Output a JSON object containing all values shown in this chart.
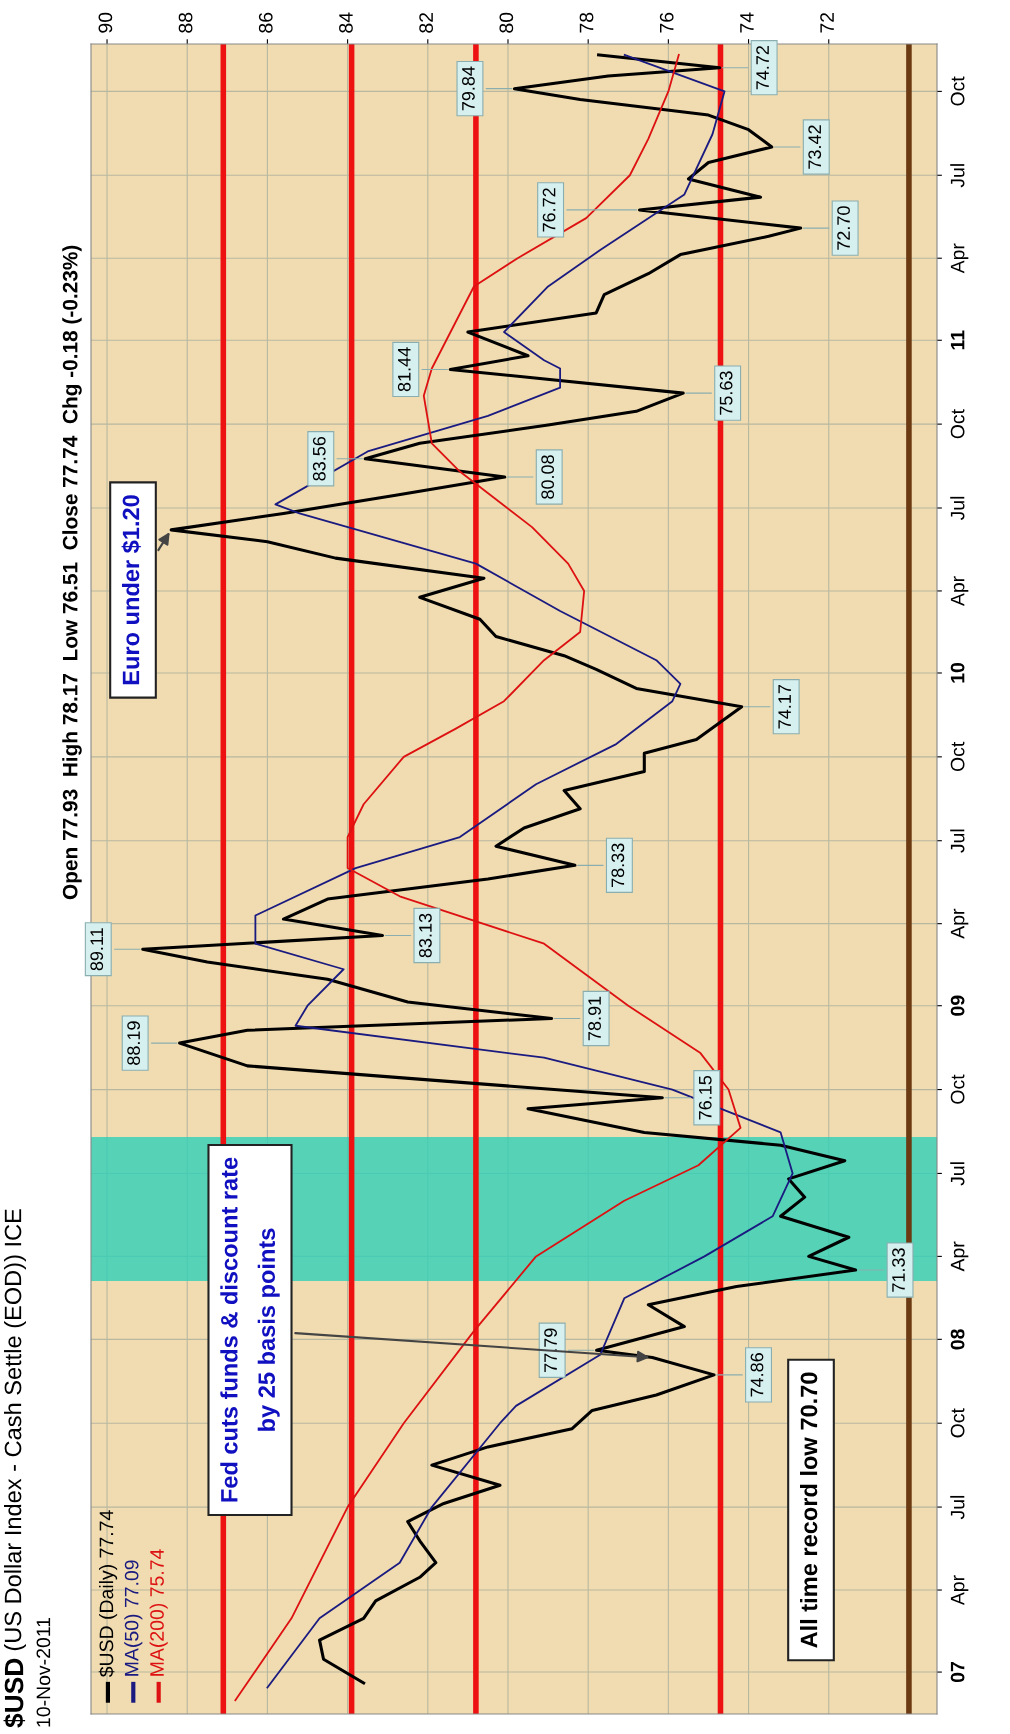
{
  "chart_data": {
    "type": "line",
    "title": "$USD (US Dollar Index - Cash Settle (EOD)) ICE",
    "subtitle": "10-Nov-2011",
    "series": [
      {
        "name": "$USD (Daily) 77.74",
        "color": "#000000",
        "x": [
          "2006-12-20",
          "2007-01-15",
          "2007-02-05",
          "2007-03-01",
          "2007-03-20",
          "2007-04-15",
          "2007-05-01",
          "2007-05-25",
          "2007-06-15",
          "2007-07-05",
          "2007-07-25",
          "2007-08-16",
          "2007-09-05",
          "2007-09-25",
          "2007-10-15",
          "2007-11-01",
          "2007-11-23",
          "2007-12-12",
          "2007-12-20",
          "2008-01-15",
          "2008-02-08",
          "2008-02-28",
          "2008-03-17",
          "2008-04-01",
          "2008-04-22",
          "2008-05-15",
          "2008-06-05",
          "2008-06-25",
          "2008-07-15",
          "2008-08-01",
          "2008-08-15",
          "2008-09-10",
          "2008-09-22",
          "2008-10-10",
          "2008-10-27",
          "2008-11-21",
          "2008-12-05",
          "2008-12-18",
          "2009-01-05",
          "2009-01-30",
          "2009-02-18",
          "2009-03-04",
          "2009-03-19",
          "2009-04-06",
          "2009-04-28",
          "2009-05-20",
          "2009-06-04",
          "2009-06-25",
          "2009-07-15",
          "2009-08-05",
          "2009-08-25",
          "2009-09-15",
          "2009-10-05",
          "2009-10-20",
          "2009-11-25",
          "2009-12-15",
          "2010-01-05",
          "2010-01-20",
          "2010-02-10",
          "2010-03-01",
          "2010-03-25",
          "2010-04-15",
          "2010-05-07",
          "2010-05-25",
          "2010-06-07",
          "2010-06-25",
          "2010-07-15",
          "2010-08-04",
          "2010-08-24",
          "2010-09-10",
          "2010-09-30",
          "2010-10-15",
          "2010-11-04",
          "2010-11-30",
          "2010-12-15",
          "2011-01-10",
          "2011-01-31",
          "2011-02-20",
          "2011-03-15",
          "2011-04-05",
          "2011-04-25",
          "2011-05-04",
          "2011-05-24",
          "2011-06-07",
          "2011-06-27",
          "2011-07-15",
          "2011-08-01",
          "2011-08-20",
          "2011-09-05",
          "2011-09-22",
          "2011-10-04",
          "2011-10-18",
          "2011-10-27",
          "2011-11-10"
        ],
        "values": [
          83.6,
          84.6,
          84.7,
          83.6,
          83.3,
          82.2,
          81.8,
          82.2,
          82.5,
          81.6,
          80.2,
          81.9,
          80.5,
          78.4,
          77.9,
          76.3,
          74.86,
          76.4,
          77.79,
          75.6,
          76.5,
          74.3,
          71.33,
          72.5,
          71.5,
          73.2,
          72.6,
          73.0,
          71.6,
          73.2,
          76.6,
          79.5,
          76.15,
          81.5,
          86.5,
          88.19,
          86.5,
          78.91,
          82.5,
          84.5,
          87.5,
          89.11,
          83.13,
          85.6,
          84.5,
          80.5,
          78.33,
          80.3,
          79.6,
          78.2,
          78.6,
          76.6,
          76.6,
          75.3,
          74.17,
          76.8,
          77.8,
          78.6,
          80.3,
          80.7,
          82.2,
          80.6,
          84.3,
          86.0,
          88.4,
          85.6,
          82.8,
          80.08,
          83.56,
          82.2,
          79.0,
          76.8,
          75.63,
          81.44,
          79.5,
          81.0,
          77.8,
          77.6,
          76.5,
          75.7,
          73.5,
          72.7,
          76.72,
          73.7,
          75.5,
          75.0,
          73.42,
          74.0,
          75.0,
          78.2,
          79.84,
          77.5,
          74.72,
          77.74
        ]
      },
      {
        "name": "MA(50) 77.09",
        "color": "#1a1a80",
        "x": [
          "2006-12-15",
          "2007-03-01",
          "2007-05-01",
          "2007-07-01",
          "2007-10-01",
          "2007-10-20",
          "2007-12-15",
          "2008-02-15",
          "2008-04-01",
          "2008-05-15",
          "2008-07-01",
          "2008-08-15",
          "2008-10-01",
          "2008-11-05",
          "2008-12-10",
          "2009-01-01",
          "2009-02-10",
          "2009-03-10",
          "2009-04-10",
          "2009-06-01",
          "2009-07-05",
          "2009-09-01",
          "2009-10-15",
          "2009-12-01",
          "2009-12-20",
          "2010-01-15",
          "2010-03-10",
          "2010-05-01",
          "2010-06-25",
          "2010-07-05",
          "2010-09-01",
          "2010-10-10",
          "2010-11-10",
          "2010-12-01",
          "2010-12-10",
          "2011-01-10",
          "2011-03-01",
          "2011-04-10",
          "2011-06-10",
          "2011-08-15",
          "2011-10-01",
          "2011-11-10"
        ],
        "values": [
          86.0,
          84.7,
          82.7,
          81.9,
          80.2,
          79.8,
          77.7,
          77.1,
          75.1,
          73.4,
          72.9,
          73.2,
          75.9,
          79.1,
          85.3,
          85.0,
          84.1,
          86.3,
          86.3,
          83.8,
          81.2,
          79.3,
          77.3,
          75.9,
          75.7,
          76.3,
          78.7,
          80.8,
          85.2,
          85.8,
          83.5,
          80.5,
          78.7,
          78.7,
          79.1,
          80.1,
          79.0,
          77.7,
          75.6,
          74.9,
          74.6,
          77.09
        ]
      },
      {
        "name": "MA(200) 75.74",
        "color": "#dd1111",
        "x": [
          "2006-12-01",
          "2007-03-01",
          "2007-07-01",
          "2007-10-01",
          "2008-01-10",
          "2008-04-01",
          "2008-06-01",
          "2008-07-10",
          "2008-08-20",
          "2008-10-01",
          "2008-11-10",
          "2009-01-01",
          "2009-03-10",
          "2009-05-01",
          "2009-06-01",
          "2009-07-05",
          "2009-08-10",
          "2009-10-01",
          "2009-11-01",
          "2009-12-01",
          "2010-01-15",
          "2010-02-15",
          "2010-04-01",
          "2010-05-01",
          "2010-06-10",
          "2010-08-10",
          "2010-09-10",
          "2010-11-01",
          "2010-12-01",
          "2011-03-01",
          "2011-04-01",
          "2011-05-15",
          "2011-07-01",
          "2011-08-10",
          "2011-10-01",
          "2011-11-10"
        ],
        "values": [
          86.8,
          85.4,
          84.0,
          82.6,
          80.85,
          79.3,
          77.1,
          75.25,
          74.2,
          74.5,
          75.2,
          77.0,
          79.1,
          82.7,
          84.0,
          84.0,
          83.6,
          82.6,
          81.3,
          80.1,
          79.1,
          78.2,
          78.1,
          78.5,
          79.4,
          81.2,
          81.9,
          82.1,
          81.9,
          80.85,
          79.76,
          78.05,
          76.96,
          76.5,
          76.0,
          75.74
        ]
      }
    ],
    "orientation": "horizontal",
    "ylim": [
      "2006-11-16",
      "2011-11-22"
    ],
    "yticks": [
      {
        "value": "2007-01-01",
        "label": "07"
      },
      {
        "value": "2007-04-01",
        "label": "Apr"
      },
      {
        "value": "2007-07-01",
        "label": "Jul"
      },
      {
        "value": "2007-10-01",
        "label": "Oct"
      },
      {
        "value": "2008-01-01",
        "label": "08"
      },
      {
        "value": "2008-04-01",
        "label": "Apr"
      },
      {
        "value": "2008-07-01",
        "label": "Jul"
      },
      {
        "value": "2008-10-01",
        "label": "Oct"
      },
      {
        "value": "2009-01-01",
        "label": "09"
      },
      {
        "value": "2009-04-01",
        "label": "Apr"
      },
      {
        "value": "2009-07-01",
        "label": "Jul"
      },
      {
        "value": "2009-10-01",
        "label": "Oct"
      },
      {
        "value": "2010-01-01",
        "label": "10"
      },
      {
        "value": "2010-04-01",
        "label": "Apr"
      },
      {
        "value": "2010-07-01",
        "label": "Jul"
      },
      {
        "value": "2010-10-01",
        "label": "Oct"
      },
      {
        "value": "2011-01-01",
        "label": "11"
      },
      {
        "value": "2011-04-01",
        "label": "Apr"
      },
      {
        "value": "2011-07-01",
        "label": "Jul"
      },
      {
        "value": "2011-10-01",
        "label": "Oct"
      }
    ],
    "xlim": [
      90.4,
      69.3
    ],
    "xticks": [
      90,
      88,
      86,
      84,
      82,
      80,
      78,
      76,
      74,
      72
    ],
    "grid": true,
    "legend": "bottom left",
    "ref_lines": [
      {
        "axis": "x",
        "value": 87.1,
        "color": "#ee1111"
      },
      {
        "axis": "x",
        "value": 83.9,
        "color": "#ee1111"
      },
      {
        "axis": "x",
        "value": 80.8,
        "color": "#ee1111"
      },
      {
        "axis": "x",
        "value": 74.7,
        "color": "#ee1111"
      },
      {
        "axis": "x",
        "value": 70.0,
        "color": "#6b3a12"
      }
    ],
    "bands": [
      {
        "axis": "y",
        "from": "2008-03-05",
        "to": "2008-08-10",
        "color": "#2fd0b8"
      }
    ],
    "annotations": [
      "Open 77.93  High 78.17  Low 76.51  Close 77.74  Chg -0.18 (-0.23%)",
      {
        "text": "Fed cuts funds & discount rate\nby 25 basis points",
        "y": "2007-12-12",
        "x": 76.4
      },
      {
        "text": "Euro under $1.20",
        "y": "2010-06-07",
        "x": 88.4
      },
      "All time record low 70.70",
      {
        "text": "74.86",
        "y": "2007-11-23",
        "x": 74.86
      },
      {
        "text": "77.79",
        "y": "2007-12-20",
        "x": 77.79
      },
      {
        "text": "71.33",
        "y": "2008-03-17",
        "x": 71.33
      },
      {
        "text": "76.15",
        "y": "2008-09-22",
        "x": 76.15
      },
      {
        "text": "88.19",
        "y": "2008-11-21",
        "x": 88.19
      },
      {
        "text": "78.91",
        "y": "2008-12-18",
        "x": 78.91
      },
      {
        "text": "89.11",
        "y": "2009-03-04",
        "x": 89.11
      },
      {
        "text": "83.13",
        "y": "2009-03-19",
        "x": 83.13
      },
      {
        "text": "78.33",
        "y": "2009-06-04",
        "x": 78.33
      },
      {
        "text": "74.17",
        "y": "2009-11-25",
        "x": 74.17
      },
      {
        "text": "83.56",
        "y": "2010-08-24",
        "x": 83.56
      },
      {
        "text": "80.08",
        "y": "2010-08-04",
        "x": 80.08
      },
      {
        "text": "75.63",
        "y": "2010-11-04",
        "x": 75.63
      },
      {
        "text": "81.44",
        "y": "2010-11-30",
        "x": 81.44
      },
      {
        "text": "72.70",
        "y": "2011-05-04",
        "x": 72.7
      },
      {
        "text": "76.72",
        "y": "2011-05-24",
        "x": 76.72
      },
      {
        "text": "73.42",
        "y": "2011-08-01",
        "x": 73.42
      },
      {
        "text": "79.84",
        "y": "2011-10-04",
        "x": 79.84
      },
      {
        "text": "74.72",
        "y": "2011-10-27",
        "x": 74.72
      }
    ]
  }
}
